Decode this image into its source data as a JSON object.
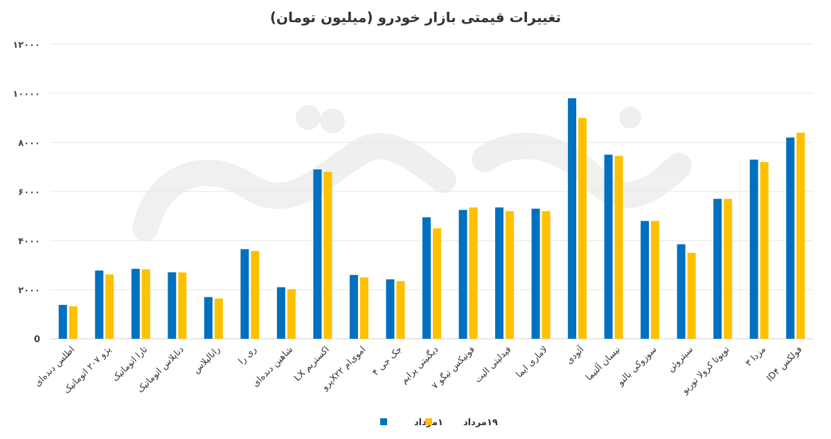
{
  "chart_data": {
    "type": "bar",
    "title": "تغییرات قیمتی بازار خودرو (میلیون تومان)",
    "xlabel": "",
    "ylabel": "",
    "ylim": [
      0,
      12000
    ],
    "yticks": [
      0,
      2000,
      4000,
      6000,
      8000,
      10000,
      12000
    ],
    "ytick_labels": [
      "0",
      "۲۰۰۰",
      "۴۰۰۰",
      "۶۰۰۰",
      "۸۰۰۰",
      "۱۰۰۰۰",
      "۱۲۰۰۰"
    ],
    "grid": true,
    "legend": "bottom",
    "categories": [
      "اطلس دنده‌ای",
      "پژو ۲۰۷ اتوماتیک",
      "تارا اتوماتیک",
      "دناپلاس اتوماتیک",
      "رانالپلاس",
      "ری را",
      "شاهین دنده‌ای",
      "اکستریم LX",
      "اموی‌ام X۲۲پرو",
      "جک جی ۴",
      "دیگنیتی پرایم",
      "فونیکس تیگو ۷",
      "فیدلیتی الیت",
      "لاماری ایما",
      "آئودی",
      "نیسان آلتیما",
      "سوزوکی بالنو",
      "سیتروئن",
      "تویوتا کرولا توربو",
      "مزدا ۳",
      "فولکس ID۴"
    ],
    "series": [
      {
        "name": "۱مرداد",
        "color": "#0070c0",
        "values": [
          1380,
          2780,
          2850,
          2710,
          1700,
          3650,
          2100,
          6900,
          2600,
          2420,
          4950,
          5250,
          5350,
          5300,
          9800,
          7500,
          4800,
          3850,
          5700,
          7300,
          8200
        ]
      },
      {
        "name": "۱۹مرداد",
        "color": "#ffc000",
        "values": [
          1320,
          2620,
          2830,
          2700,
          1640,
          3580,
          2020,
          6800,
          2500,
          2350,
          4500,
          5350,
          5200,
          5200,
          9000,
          7450,
          4800,
          3500,
          5700,
          7200,
          8400
        ]
      }
    ]
  },
  "legend_items": [
    {
      "label": "۱مرداد",
      "color": "#0070c0"
    },
    {
      "label": "۱۹مرداد",
      "color": "#ffc000"
    }
  ]
}
